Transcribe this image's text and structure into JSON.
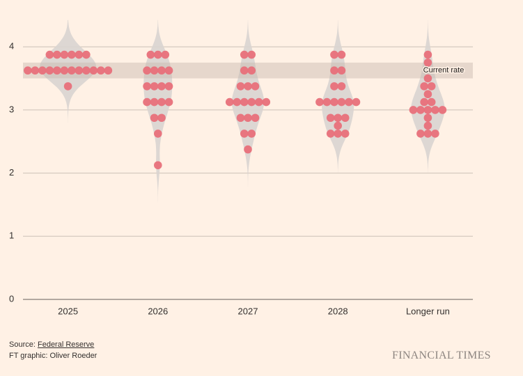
{
  "chart_data": {
    "type": "dot",
    "categories": [
      "2025",
      "2026",
      "2027",
      "2028",
      "Longer run"
    ],
    "values": [
      [
        3.875,
        3.875,
        3.875,
        3.875,
        3.875,
        3.875,
        3.625,
        3.625,
        3.625,
        3.625,
        3.625,
        3.625,
        3.625,
        3.625,
        3.625,
        3.625,
        3.625,
        3.625,
        3.375
      ],
      [
        3.875,
        3.875,
        3.875,
        3.625,
        3.625,
        3.625,
        3.625,
        3.375,
        3.375,
        3.375,
        3.375,
        3.125,
        3.125,
        3.125,
        3.125,
        2.875,
        2.875,
        2.625,
        2.125
      ],
      [
        3.875,
        3.875,
        3.625,
        3.625,
        3.375,
        3.375,
        3.375,
        3.125,
        3.125,
        3.125,
        3.125,
        3.125,
        3.125,
        2.875,
        2.875,
        2.875,
        2.625,
        2.625,
        2.375
      ],
      [
        3.875,
        3.875,
        3.625,
        3.625,
        3.375,
        3.375,
        3.125,
        3.125,
        3.125,
        3.125,
        3.125,
        3.125,
        2.875,
        2.875,
        2.875,
        2.75,
        2.625,
        2.625,
        2.625
      ],
      [
        3.875,
        3.75,
        3.5,
        3.375,
        3.375,
        3.25,
        3.125,
        3.125,
        3.0,
        3.0,
        3.0,
        3.0,
        3.0,
        2.875,
        2.75,
        2.625,
        2.625,
        2.625
      ]
    ],
    "color": "#e8707a",
    "ylim": [
      0,
      4.3
    ],
    "yticks": [
      0,
      1,
      2,
      3,
      4
    ],
    "grid": true,
    "current_rate_label": "Current rate",
    "current_rate_range": [
      3.5,
      3.75
    ]
  },
  "footer": {
    "source_label": "Source:",
    "source": "Federal Reserve",
    "credit": "FT graphic: Oliver Roeder",
    "brand": "FINANCIAL TIMES"
  }
}
